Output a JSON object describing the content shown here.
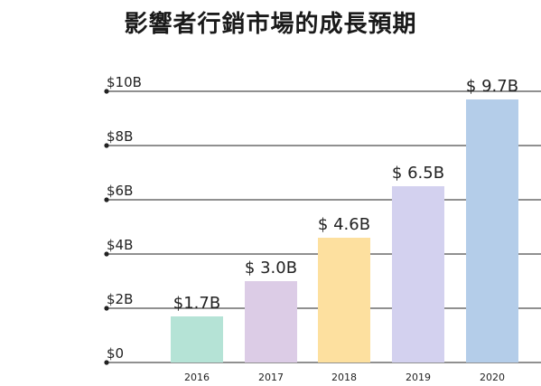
{
  "chart_data": {
    "type": "bar",
    "title": "影響者行銷市場的成長預期",
    "categories": [
      "2016",
      "2017",
      "2018",
      "2019",
      "2020"
    ],
    "values": [
      1.7,
      3.0,
      4.6,
      6.5,
      9.7
    ],
    "data_labels": [
      "$1.7B",
      "$ 3.0B",
      "$ 4.6B",
      "$ 6.5B",
      "$ 9.7B"
    ],
    "bar_colors": [
      "#b5e3d6",
      "#dccce6",
      "#fde09f",
      "#d3d1ef",
      "#b4cde9"
    ],
    "y_ticks": [
      0,
      2,
      4,
      6,
      8,
      10
    ],
    "y_tick_labels": [
      "$0",
      "$2B",
      "$4B",
      "$6B",
      "$8B",
      "$10B"
    ],
    "ylim": [
      0,
      10
    ],
    "grid": true,
    "xlabel": "",
    "ylabel": ""
  }
}
